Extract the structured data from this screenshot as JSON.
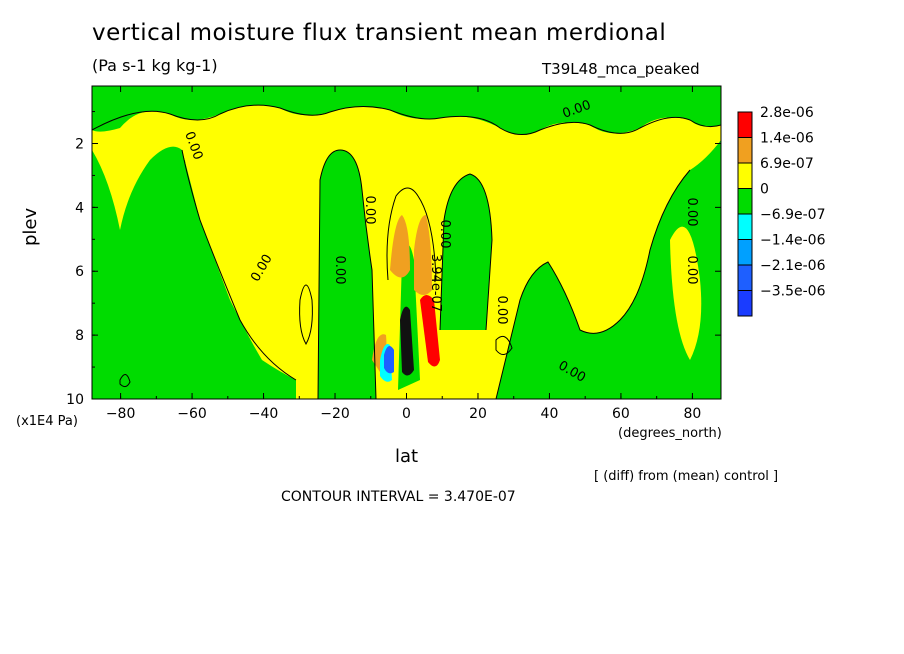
{
  "chart_data": {
    "type": "heatmap",
    "title": "vertical moisture flux transient mean merdional",
    "subtitle": "(Pa s-1 kg kg-1)",
    "run_name": "T39L48_mca_peaked",
    "xlabel": "lat",
    "xlabel_unit": "(degrees_north)",
    "ylabel": "plev",
    "ylabel_unit": "(x1E4 Pa)",
    "xlim": [
      -88,
      88
    ],
    "ylim": [
      0.2,
      10
    ],
    "y_inverted": true,
    "x_ticks": [
      -80,
      -60,
      -40,
      -20,
      0,
      20,
      40,
      60,
      80
    ],
    "y_ticks": [
      2,
      4,
      6,
      8,
      10
    ],
    "colorbar": {
      "levels": [
        "2.8e-06",
        "1.4e-06",
        "6.9e-07",
        "0",
        "-6.9e-07",
        "-1.4e-06",
        "-2.1e-06",
        "-3.5e-06"
      ],
      "colors": [
        "#ff0000",
        "#f0a020",
        "#ffff00",
        "#00dc00",
        "#00ffff",
        "#00a0ff",
        "#1e5fff",
        "#1a3cff"
      ]
    },
    "contour_labels": [
      "0.00",
      "0.00",
      "0.00",
      "0.00",
      "0.00",
      "0.00",
      "0.00",
      "0.00",
      "0.00",
      "0.00",
      "3.94e-07"
    ],
    "contour_interval_text": "CONTOUR INTERVAL = 3.470E-07",
    "note": "[ (diff) from (mean) control ]"
  }
}
